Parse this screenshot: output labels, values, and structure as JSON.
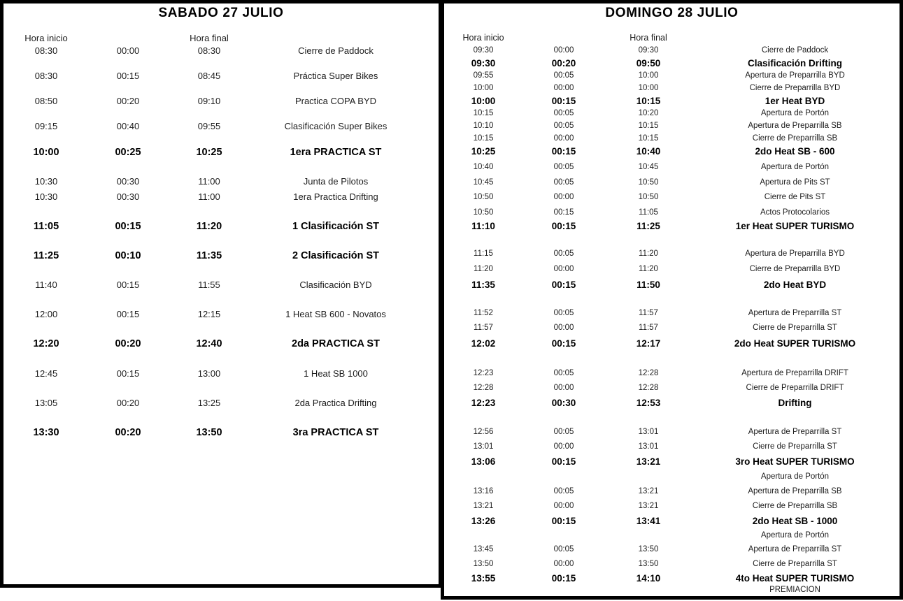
{
  "page": {
    "background_color": "#ffffff",
    "text_color": "#1c1c1c",
    "border_color": "#000000"
  },
  "saturday": {
    "title": "SABADO 27 JULIO",
    "headers": {
      "start": "Hora inicio",
      "end": "Hora final"
    },
    "rows": [
      {
        "start": "08:30",
        "duration": "00:00",
        "end": "08:30",
        "activity": "Cierre de Paddock",
        "bold": false,
        "gap": 0
      },
      {
        "start": "08:30",
        "duration": "00:15",
        "end": "08:45",
        "activity": "Práctica Super Bikes",
        "bold": false,
        "gap": 18
      },
      {
        "start": "08:50",
        "duration": "00:20",
        "end": "09:10",
        "activity": "Practica COPA BYD",
        "bold": false,
        "gap": 18
      },
      {
        "start": "09:15",
        "duration": "00:40",
        "end": "09:55",
        "activity": "Clasificación Super Bikes",
        "bold": false,
        "gap": 18
      },
      {
        "start": "10:00",
        "duration": "00:25",
        "end": "10:25",
        "activity": "1era PRACTICA ST",
        "bold": true,
        "gap": 19
      },
      {
        "start": "10:30",
        "duration": "00:30",
        "end": "11:00",
        "activity": "Junta de Pilotos",
        "bold": false,
        "gap": 24
      },
      {
        "start": "10:30",
        "duration": "00:30",
        "end": "11:00",
        "activity": "1era Practica Drifting",
        "bold": false,
        "gap": 4
      },
      {
        "start": "11:05",
        "duration": "00:15",
        "end": "11:20",
        "activity": "1 Clasificación ST",
        "bold": true,
        "gap": 24
      },
      {
        "start": "11:25",
        "duration": "00:10",
        "end": "11:35",
        "activity": "2 Clasificación ST",
        "bold": true,
        "gap": 24
      },
      {
        "start": "11:40",
        "duration": "00:15",
        "end": "11:55",
        "activity": "Clasificación BYD",
        "bold": false,
        "gap": 24
      },
      {
        "start": "12:00",
        "duration": "00:15",
        "end": "12:15",
        "activity": "1 Heat SB 600 - Novatos",
        "bold": false,
        "gap": 24
      },
      {
        "start": "12:20",
        "duration": "00:20",
        "end": "12:40",
        "activity": "2da PRACTICA ST",
        "bold": true,
        "gap": 24
      },
      {
        "start": "12:45",
        "duration": "00:15",
        "end": "13:00",
        "activity": "1 Heat SB 1000",
        "bold": false,
        "gap": 25
      },
      {
        "start": "13:05",
        "duration": "00:20",
        "end": "13:25",
        "activity": "2da Practica Drifting",
        "bold": false,
        "gap": 24
      },
      {
        "start": "13:30",
        "duration": "00:20",
        "end": "13:50",
        "activity": "3ra PRACTICA ST",
        "bold": true,
        "gap": 24
      }
    ]
  },
  "sunday": {
    "title": "DOMINGO 28 JULIO",
    "headers": {
      "start": "Hora inicio",
      "end": "Hora final"
    },
    "rows": [
      {
        "start": "09:30",
        "duration": "00:00",
        "end": "09:30",
        "activity": "Cierre de Paddock",
        "bold": false,
        "gap": 0
      },
      {
        "start": "09:30",
        "duration": "00:20",
        "end": "09:50",
        "activity": "Clasificación Drifting",
        "bold": true,
        "gap": 1
      },
      {
        "start": "09:55",
        "duration": "00:05",
        "end": "10:00",
        "activity": "Apertura de Preparrilla BYD",
        "bold": false,
        "gap": 1
      },
      {
        "start": "10:00",
        "duration": "00:00",
        "end": "10:00",
        "activity": "Cierre de Preparrilla BYD",
        "bold": false,
        "gap": 1
      },
      {
        "start": "10:00",
        "duration": "00:15",
        "end": "10:15",
        "activity": "1er Heat BYD",
        "bold": true,
        "gap": 1
      },
      {
        "start": "10:15",
        "duration": "00:05",
        "end": "10:20",
        "activity": "Apertura de Portón",
        "bold": false,
        "gap": 1
      },
      {
        "start": "10:10",
        "duration": "00:05",
        "end": "10:15",
        "activity": "Apertura de Preparrilla SB",
        "bold": false,
        "gap": 1
      },
      {
        "start": "10:15",
        "duration": "00:00",
        "end": "10:15",
        "activity": "Cierre de Preparrilla SB",
        "bold": false,
        "gap": 1
      },
      {
        "start": "10:25",
        "duration": "00:15",
        "end": "10:40",
        "activity": "2do Heat SB - 600",
        "bold": true,
        "gap": 1
      },
      {
        "start": "10:40",
        "duration": "00:05",
        "end": "10:45",
        "activity": "Apertura de Portón",
        "bold": false,
        "gap": 6
      },
      {
        "start": "10:45",
        "duration": "00:05",
        "end": "10:50",
        "activity": "Apertura de Pits ST",
        "bold": false,
        "gap": 5
      },
      {
        "start": "10:50",
        "duration": "00:00",
        "end": "10:50",
        "activity": "Cierre de Pits ST",
        "bold": false,
        "gap": 4
      },
      {
        "start": "10:50",
        "duration": "00:15",
        "end": "11:05",
        "activity": "Actos Protocolarios",
        "bold": false,
        "gap": 5
      },
      {
        "start": "11:10",
        "duration": "00:15",
        "end": "11:25",
        "activity": "1er Heat SUPER TURISMO",
        "bold": true,
        "gap": 2
      },
      {
        "start": "11:15",
        "duration": "00:05",
        "end": "11:20",
        "activity": "Apertura de Preparrilla BYD",
        "bold": false,
        "gap": 23
      },
      {
        "start": "11:20",
        "duration": "00:00",
        "end": "11:20",
        "activity": "Cierre de Preparrilla BYD",
        "bold": false,
        "gap": 5
      },
      {
        "start": "11:35",
        "duration": "00:15",
        "end": "11:50",
        "activity": "2do Heat BYD",
        "bold": true,
        "gap": 5
      },
      {
        "start": "11:52",
        "duration": "00:05",
        "end": "11:57",
        "activity": "Apertura de Preparrilla ST",
        "bold": false,
        "gap": 24
      },
      {
        "start": "11:57",
        "duration": "00:00",
        "end": "11:57",
        "activity": "Cierre de Preparrilla ST",
        "bold": false,
        "gap": 4
      },
      {
        "start": "12:02",
        "duration": "00:15",
        "end": "12:17",
        "activity": "2do Heat SUPER TURISMO",
        "bold": true,
        "gap": 5
      },
      {
        "start": "12:23",
        "duration": "00:05",
        "end": "12:28",
        "activity": "Apertura de Preparrilla DRIFT",
        "bold": false,
        "gap": 26
      },
      {
        "start": "12:28",
        "duration": "00:00",
        "end": "12:28",
        "activity": "Cierre de Preparrilla DRIFT",
        "bold": false,
        "gap": 4
      },
      {
        "start": "12:23",
        "duration": "00:30",
        "end": "12:53",
        "activity": "Drifting",
        "bold": true,
        "gap": 4
      },
      {
        "start": "12:56",
        "duration": "00:05",
        "end": "13:01",
        "activity": "Apertura de Preparrilla ST",
        "bold": false,
        "gap": 25
      },
      {
        "start": "13:01",
        "duration": "00:00",
        "end": "13:01",
        "activity": "Cierre de Preparrilla ST",
        "bold": false,
        "gap": 4
      },
      {
        "start": "13:06",
        "duration": "00:15",
        "end": "13:21",
        "activity": "3ro Heat SUPER TURISMO",
        "bold": true,
        "gap": 4
      },
      {
        "start": "",
        "duration": "",
        "end": "",
        "activity": "Apertura de Portón",
        "bold": false,
        "gap": 5
      },
      {
        "start": "13:16",
        "duration": "00:05",
        "end": "13:21",
        "activity": "Apertura de Preparrilla SB",
        "bold": false,
        "gap": 4
      },
      {
        "start": "13:21",
        "duration": "00:00",
        "end": "13:21",
        "activity": "Cierre de Preparrilla SB",
        "bold": false,
        "gap": 4
      },
      {
        "start": "13:26",
        "duration": "00:15",
        "end": "13:41",
        "activity": "2do Heat SB - 1000",
        "bold": true,
        "gap": 4
      },
      {
        "start": "",
        "duration": "",
        "end": "",
        "activity": "Apertura de Portón",
        "bold": false,
        "gap": 4
      },
      {
        "start": "13:45",
        "duration": "00:05",
        "end": "13:50",
        "activity": "Apertura de Preparrilla ST",
        "bold": false,
        "gap": 3
      },
      {
        "start": "13:50",
        "duration": "00:00",
        "end": "13:50",
        "activity": "Cierre de Preparrilla ST",
        "bold": false,
        "gap": 4
      },
      {
        "start": "13:55",
        "duration": "00:15",
        "end": "14:10",
        "activity": "4to Heat SUPER TURISMO",
        "bold": true,
        "gap": 3
      },
      {
        "start": "",
        "duration": "",
        "end": "",
        "activity": "PREMIACION",
        "bold": false,
        "gap": 0
      }
    ]
  }
}
